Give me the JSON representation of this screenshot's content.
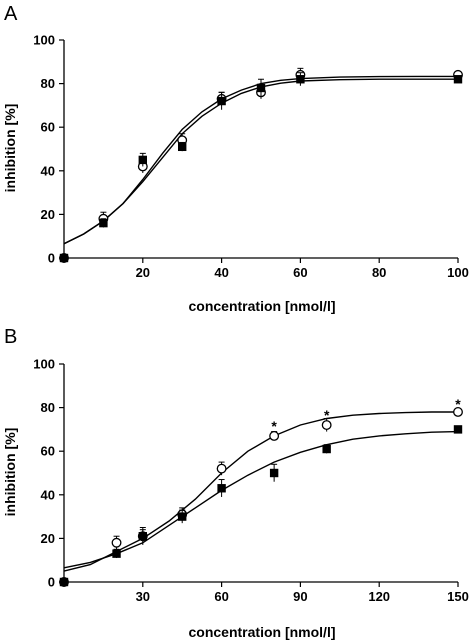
{
  "chart_data": [
    {
      "type": "scatter",
      "panel_label": "A",
      "xlabel": "concentration [nmol/l]",
      "ylabel": "inhibition [%]",
      "xlim": [
        0,
        100
      ],
      "ylim": [
        0,
        100
      ],
      "x_ticks": [
        20,
        40,
        60,
        80,
        100
      ],
      "y_ticks": [
        0,
        20,
        40,
        60,
        80,
        100
      ],
      "grid": false,
      "series": [
        {
          "marker": "open-circle",
          "x": [
            0,
            10,
            20,
            30,
            40,
            50,
            60,
            100
          ],
          "y": [
            0,
            18,
            42,
            54,
            73,
            76,
            84,
            84
          ],
          "err": [
            0,
            3,
            3,
            3,
            3,
            3,
            3,
            0
          ]
        },
        {
          "marker": "filled-square",
          "x": [
            0,
            10,
            20,
            30,
            40,
            50,
            60,
            100
          ],
          "y": [
            0,
            16,
            45,
            51,
            72,
            78,
            82,
            82
          ],
          "err": [
            0,
            2,
            3,
            2,
            4,
            4,
            3,
            0
          ]
        }
      ],
      "fits": [
        {
          "x": [
            0,
            5,
            10,
            15,
            20,
            25,
            30,
            35,
            40,
            45,
            50,
            55,
            60,
            70,
            80,
            90,
            100
          ],
          "y": [
            6.5,
            11,
            17,
            25,
            36,
            48,
            59,
            67,
            73,
            77,
            80,
            81.5,
            82.3,
            83,
            83.2,
            83.3,
            83.3
          ]
        },
        {
          "x": [
            0,
            5,
            10,
            15,
            20,
            25,
            30,
            35,
            40,
            45,
            50,
            55,
            60,
            70,
            80,
            90,
            100
          ],
          "y": [
            6.5,
            11,
            17,
            25,
            35,
            46,
            57,
            65,
            71,
            75.5,
            78.5,
            80.2,
            81.2,
            81.8,
            82,
            82,
            82
          ]
        }
      ]
    },
    {
      "type": "scatter",
      "panel_label": "B",
      "xlabel": "concentration [nmol/l]",
      "ylabel": "inhibition [%]",
      "xlim": [
        0,
        150
      ],
      "ylim": [
        0,
        100
      ],
      "x_ticks": [
        30,
        60,
        90,
        120,
        150
      ],
      "y_ticks": [
        0,
        20,
        40,
        60,
        80,
        100
      ],
      "grid": false,
      "series": [
        {
          "marker": "open-circle",
          "x": [
            0,
            20,
            30,
            45,
            60,
            80,
            100,
            150
          ],
          "y": [
            0,
            18,
            21,
            31,
            52,
            67,
            72,
            78
          ],
          "err": [
            0,
            3,
            3,
            3,
            3,
            2,
            3,
            0
          ]
        },
        {
          "marker": "filled-square",
          "x": [
            0,
            20,
            30,
            45,
            60,
            80,
            100,
            150
          ],
          "y": [
            0,
            13,
            21,
            30,
            43,
            50,
            61,
            70
          ],
          "err": [
            0,
            2,
            4,
            3,
            4,
            4,
            2,
            0
          ]
        }
      ],
      "fits": [
        {
          "x": [
            0,
            10,
            20,
            30,
            40,
            50,
            60,
            70,
            80,
            90,
            100,
            110,
            120,
            130,
            140,
            150
          ],
          "y": [
            5,
            8,
            14,
            20,
            28,
            38,
            50,
            60,
            67,
            72,
            75,
            76.5,
            77.3,
            77.7,
            78,
            78
          ]
        },
        {
          "x": [
            0,
            10,
            20,
            30,
            40,
            50,
            60,
            70,
            80,
            90,
            100,
            110,
            120,
            130,
            140,
            150
          ],
          "y": [
            6.5,
            9,
            13,
            18,
            26,
            34,
            42,
            49,
            55,
            59.5,
            63,
            65.5,
            67,
            68,
            68.7,
            69
          ]
        }
      ],
      "annotations": [
        {
          "text": "*",
          "x": 80,
          "y": 73
        },
        {
          "text": "*",
          "x": 100,
          "y": 78
        },
        {
          "text": "*",
          "x": 150,
          "y": 83
        }
      ]
    }
  ]
}
